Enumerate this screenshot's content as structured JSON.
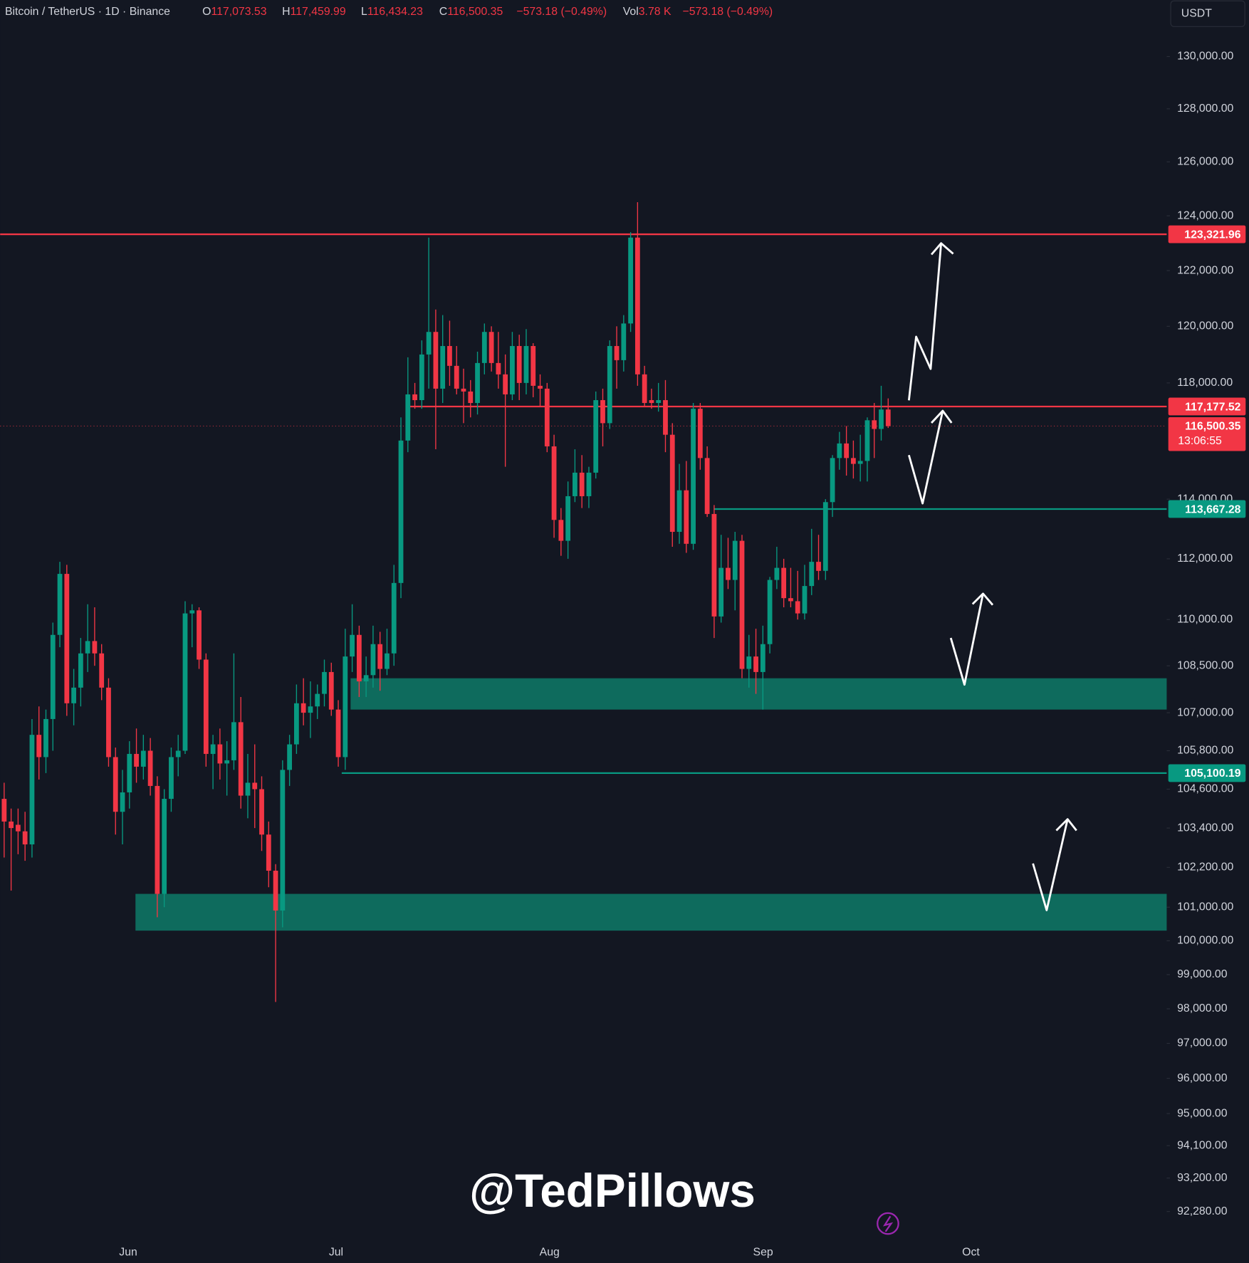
{
  "chart_data": {
    "type": "candlestick",
    "header": {
      "symbol": "Bitcoin / TetherUS · 1D · Binance",
      "fields": [
        {
          "key": "O",
          "value": "117,073.53"
        },
        {
          "key": "H",
          "value": "117,459.99"
        },
        {
          "key": "L",
          "value": "116,434.23"
        },
        {
          "key": "C",
          "value": "116,500.35"
        }
      ],
      "change": "−573.18 (−0.49%)",
      "volume_key": "Vol",
      "volume": "3.78 K",
      "volume_change": "−573.18 (−0.49%)"
    },
    "currency": "USDT",
    "watermark": "@TedPillows",
    "up_color": "#089981",
    "down_color": "#f23645",
    "log_scale": true,
    "grid": false,
    "xlabels": [
      "Jun",
      "Jul",
      "Aug",
      "Sep",
      "Oct"
    ],
    "ylim": [
      91600,
      132200
    ],
    "yticks": [
      {
        "value": 130000,
        "label": "130,000.00"
      },
      {
        "value": 128000,
        "label": "128,000.00"
      },
      {
        "value": 126000,
        "label": "126,000.00"
      },
      {
        "value": 124000,
        "label": "124,000.00"
      },
      {
        "value": 122000,
        "label": "122,000.00"
      },
      {
        "value": 120000,
        "label": "120,000.00"
      },
      {
        "value": 118000,
        "label": "118,000.00"
      },
      {
        "value": 114000,
        "label": "114,000.00"
      },
      {
        "value": 112000,
        "label": "112,000.00"
      },
      {
        "value": 110000,
        "label": "110,000.00"
      },
      {
        "value": 108500,
        "label": "108,500.00"
      },
      {
        "value": 107000,
        "label": "107,000.00"
      },
      {
        "value": 105800,
        "label": "105,800.00"
      },
      {
        "value": 104600,
        "label": "104,600.00"
      },
      {
        "value": 103400,
        "label": "103,400.00"
      },
      {
        "value": 102200,
        "label": "102,200.00"
      },
      {
        "value": 101000,
        "label": "101,000.00"
      },
      {
        "value": 100000,
        "label": "100,000.00"
      },
      {
        "value": 99000,
        "label": "99,000.00"
      },
      {
        "value": 98000,
        "label": "98,000.00"
      },
      {
        "value": 97000,
        "label": "97,000.00"
      },
      {
        "value": 96000,
        "label": "96,000.00"
      },
      {
        "value": 95000,
        "label": "95,000.00"
      },
      {
        "value": 94100,
        "label": "94,100.00"
      },
      {
        "value": 93200,
        "label": "93,200.00"
      },
      {
        "value": 92280,
        "label": "92,280.00"
      }
    ],
    "zones": [
      {
        "top": 108100,
        "bottom": 107100,
        "color": "#0e6b5d"
      },
      {
        "top": 101400,
        "bottom": 100300,
        "color": "#0e6b5d"
      }
    ],
    "levels": [
      {
        "value": 123321.96,
        "label": "123,321.96",
        "color": "#f23645"
      },
      {
        "value": 117177.52,
        "label": "117,177.52",
        "color": "#f23645"
      },
      {
        "value": 113667.28,
        "label": "113,667.28",
        "color": "#089981"
      },
      {
        "value": 105100.19,
        "label": "105,100.19",
        "color": "#089981"
      }
    ],
    "last_price": {
      "value": 116500.35,
      "label": "116,500.35",
      "countdown": "13:06:55",
      "color": "#f23645"
    },
    "ohlc": [
      [
        104300,
        104800,
        102500,
        103600
      ],
      [
        103600,
        104000,
        101500,
        103400
      ],
      [
        103500,
        104000,
        102600,
        103300
      ],
      [
        103300,
        103900,
        102400,
        102900
      ],
      [
        102900,
        106800,
        102500,
        106300
      ],
      [
        106300,
        107200,
        104900,
        105600
      ],
      [
        105600,
        107100,
        105100,
        106800
      ],
      [
        106800,
        109900,
        105800,
        109500
      ],
      [
        109500,
        111900,
        109100,
        111500
      ],
      [
        111500,
        111800,
        106900,
        107300
      ],
      [
        107300,
        108400,
        106600,
        107800
      ],
      [
        107800,
        109400,
        107200,
        108900
      ],
      [
        108900,
        110500,
        108300,
        109300
      ],
      [
        109300,
        110400,
        108500,
        108900
      ],
      [
        108900,
        109200,
        107400,
        107800
      ],
      [
        107800,
        108100,
        105300,
        105600
      ],
      [
        105600,
        105900,
        103200,
        103900
      ],
      [
        103900,
        105200,
        102900,
        104500
      ],
      [
        104500,
        106100,
        104000,
        105700
      ],
      [
        105700,
        106500,
        104800,
        105300
      ],
      [
        105300,
        106300,
        104900,
        105800
      ],
      [
        105800,
        106200,
        104400,
        104700
      ],
      [
        104700,
        105000,
        100700,
        101400
      ],
      [
        101400,
        104600,
        101000,
        104300
      ],
      [
        104300,
        105900,
        103900,
        105600
      ],
      [
        105600,
        106300,
        105000,
        105800
      ],
      [
        105800,
        110600,
        105700,
        110200
      ],
      [
        110200,
        110500,
        109100,
        110300
      ],
      [
        110300,
        110400,
        108400,
        108700
      ],
      [
        108700,
        108900,
        105300,
        105700
      ],
      [
        105700,
        106300,
        104600,
        106000
      ],
      [
        106000,
        106500,
        104900,
        105400
      ],
      [
        105400,
        106100,
        104400,
        105500
      ],
      [
        105500,
        108900,
        105200,
        106700
      ],
      [
        106700,
        107500,
        104000,
        104400
      ],
      [
        104400,
        105700,
        103700,
        104800
      ],
      [
        104800,
        106000,
        103400,
        104600
      ],
      [
        104600,
        105000,
        102700,
        103200
      ],
      [
        103200,
        103600,
        101600,
        102100
      ],
      [
        102100,
        102300,
        98200,
        100900
      ],
      [
        100900,
        105500,
        100400,
        105200
      ],
      [
        105200,
        106300,
        104700,
        106000
      ],
      [
        106000,
        107900,
        105700,
        107300
      ],
      [
        107300,
        108100,
        106600,
        107000
      ],
      [
        107000,
        108000,
        106200,
        107200
      ],
      [
        107200,
        107900,
        106800,
        107600
      ],
      [
        107600,
        108700,
        107200,
        108300
      ],
      [
        108300,
        108600,
        106900,
        107100
      ],
      [
        107100,
        107400,
        105300,
        105600
      ],
      [
        105600,
        109700,
        105200,
        108800
      ],
      [
        108800,
        110500,
        108300,
        109500
      ],
      [
        109500,
        109800,
        107500,
        108000
      ],
      [
        108000,
        108800,
        107500,
        108200
      ],
      [
        108200,
        109800,
        107800,
        109200
      ],
      [
        109200,
        109600,
        107700,
        108400
      ],
      [
        108400,
        109700,
        108200,
        108900
      ],
      [
        108900,
        111800,
        108500,
        111200
      ],
      [
        111200,
        116800,
        110700,
        116000
      ],
      [
        116000,
        118900,
        115600,
        117600
      ],
      [
        117600,
        118000,
        117100,
        117400
      ],
      [
        117400,
        119500,
        117100,
        119000
      ],
      [
        119000,
        123200,
        117800,
        119800
      ],
      [
        119800,
        120600,
        115700,
        117800
      ],
      [
        117800,
        120400,
        117300,
        119300
      ],
      [
        119300,
        120200,
        117900,
        118600
      ],
      [
        118600,
        119300,
        117600,
        117800
      ],
      [
        117800,
        118500,
        116600,
        117700
      ],
      [
        117700,
        118100,
        116800,
        117300
      ],
      [
        117300,
        119100,
        116900,
        118700
      ],
      [
        118700,
        120100,
        118300,
        119800
      ],
      [
        119800,
        120000,
        118400,
        118700
      ],
      [
        118700,
        119800,
        117800,
        118300
      ],
      [
        118300,
        119000,
        115100,
        117600
      ],
      [
        117600,
        119800,
        117400,
        119300
      ],
      [
        119300,
        119700,
        117400,
        118000
      ],
      [
        118000,
        119900,
        117600,
        119300
      ],
      [
        119300,
        119400,
        117500,
        117900
      ],
      [
        117900,
        118300,
        117200,
        117800
      ],
      [
        117800,
        118000,
        115600,
        115800
      ],
      [
        115800,
        116200,
        112700,
        113300
      ],
      [
        113300,
        113700,
        112100,
        112600
      ],
      [
        112600,
        114600,
        112000,
        114100
      ],
      [
        114100,
        115700,
        113900,
        114900
      ],
      [
        114900,
        115500,
        113700,
        114100
      ],
      [
        114100,
        115100,
        113700,
        114900
      ],
      [
        114900,
        117700,
        114700,
        117400
      ],
      [
        117400,
        117800,
        115800,
        116600
      ],
      [
        116600,
        119500,
        116400,
        119300
      ],
      [
        119300,
        120000,
        117800,
        118800
      ],
      [
        118800,
        120400,
        118400,
        120100
      ],
      [
        120100,
        123400,
        119800,
        123200
      ],
      [
        123200,
        124500,
        117900,
        118300
      ],
      [
        118300,
        118600,
        117200,
        117300
      ],
      [
        117400,
        117800,
        117100,
        117300
      ],
      [
        117300,
        118000,
        117000,
        117400
      ],
      [
        117400,
        118100,
        115600,
        116200
      ],
      [
        116200,
        116600,
        112400,
        112900
      ],
      [
        112900,
        115200,
        112500,
        114300
      ],
      [
        114300,
        115300,
        112200,
        112500
      ],
      [
        112500,
        117300,
        112300,
        117100
      ],
      [
        117100,
        117300,
        115000,
        115400
      ],
      [
        115400,
        115800,
        113400,
        113500
      ],
      [
        113500,
        113800,
        109400,
        110100
      ],
      [
        110100,
        112800,
        109900,
        111700
      ],
      [
        111700,
        112700,
        111000,
        111300
      ],
      [
        111300,
        112900,
        110300,
        112600
      ],
      [
        112600,
        112800,
        108100,
        108400
      ],
      [
        108400,
        109500,
        107800,
        108800
      ],
      [
        108800,
        109700,
        107600,
        108300
      ],
      [
        108300,
        109800,
        107100,
        109200
      ],
      [
        109200,
        111400,
        108900,
        111300
      ],
      [
        111300,
        112400,
        111000,
        111700
      ],
      [
        111700,
        112000,
        110400,
        110700
      ],
      [
        110700,
        111700,
        110400,
        110600
      ],
      [
        110600,
        111600,
        110000,
        110200
      ],
      [
        110200,
        111800,
        110000,
        111100
      ],
      [
        111100,
        113000,
        110800,
        111900
      ],
      [
        111900,
        112800,
        111300,
        111600
      ],
      [
        111600,
        114000,
        111300,
        113900
      ],
      [
        113900,
        115500,
        113400,
        115400
      ],
      [
        115400,
        116300,
        115000,
        115900
      ],
      [
        115900,
        116500,
        114800,
        115400
      ],
      [
        115400,
        116000,
        114700,
        115200
      ],
      [
        115200,
        116200,
        114600,
        115300
      ],
      [
        115300,
        116800,
        114600,
        116700
      ],
      [
        116700,
        117300,
        115400,
        116400
      ],
      [
        116400,
        117900,
        116000,
        117073.53
      ],
      [
        117073.53,
        117459.99,
        116434.23,
        116500.35
      ]
    ]
  }
}
